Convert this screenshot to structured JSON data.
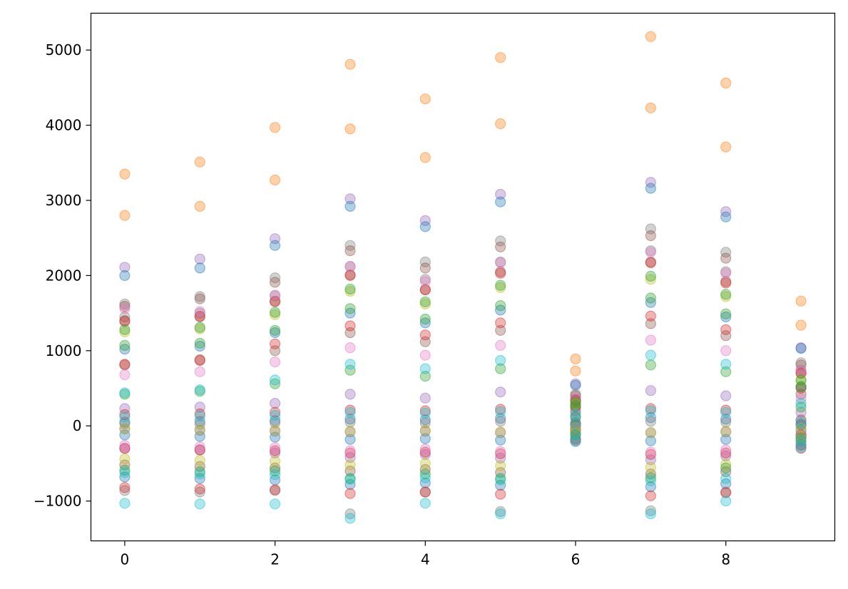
{
  "chart_data": {
    "type": "scatter",
    "title": "",
    "xlabel": "",
    "ylabel": "",
    "xlim": [
      -0.45,
      9.45
    ],
    "ylim": [
      -1530,
      5490
    ],
    "x_ticks": [
      0,
      2,
      4,
      6,
      8
    ],
    "x_tick_labels": [
      "0",
      "2",
      "4",
      "6",
      "8"
    ],
    "y_ticks": [
      -1000,
      0,
      1000,
      2000,
      3000,
      4000,
      5000
    ],
    "y_tick_labels": [
      "−1000",
      "0",
      "1000",
      "2000",
      "3000",
      "4000",
      "5000"
    ],
    "grid": false,
    "legend": "none",
    "marker_alpha": 0.35,
    "palette": [
      "#1f77b4",
      "#ff7f0e",
      "#2ca02c",
      "#d62728",
      "#9467bd",
      "#8c564b",
      "#e377c2",
      "#7f7f7f",
      "#bcbd22",
      "#17becf"
    ],
    "categories": [
      0,
      1,
      2,
      3,
      4,
      5,
      6,
      7,
      8,
      9
    ],
    "series": [
      {
        "color": "#ff7f0e",
        "points_by_x": [
          [
            3350,
            2800
          ],
          [
            3510,
            2920
          ],
          [
            3970,
            3270
          ],
          [
            4810,
            3950
          ],
          [
            4350,
            3570
          ],
          [
            4900,
            4020
          ],
          [
            890,
            730
          ],
          [
            5180,
            4230
          ],
          [
            4560,
            3710
          ],
          [
            1660,
            1340
          ]
        ]
      },
      {
        "color": "#9467bd",
        "points_by_x": [
          [
            2110,
            230,
            -40,
            -300
          ],
          [
            2220,
            250,
            -60,
            -320
          ],
          [
            2490,
            300,
            -70,
            -360
          ],
          [
            3020,
            420,
            -80,
            -420
          ],
          [
            2730,
            370,
            -70,
            -380
          ],
          [
            3080,
            450,
            -90,
            -430
          ],
          [
            560,
            110,
            20,
            -60
          ],
          [
            3240,
            470,
            -90,
            -450
          ],
          [
            2850,
            400,
            -80,
            -400
          ],
          [
            1040,
            180,
            10,
            -120
          ]
        ]
      },
      {
        "color": "#1f77b4",
        "points_by_x": [
          [
            2000,
            1020,
            50,
            -120,
            -680
          ],
          [
            2100,
            1060,
            60,
            -140,
            -700
          ],
          [
            2400,
            1240,
            70,
            -150,
            -720
          ],
          [
            2920,
            1500,
            90,
            -180,
            -780
          ],
          [
            2650,
            1370,
            80,
            -170,
            -760
          ],
          [
            2980,
            1540,
            100,
            -190,
            -790
          ],
          [
            540,
            280,
            10,
            -40,
            -180
          ],
          [
            3160,
            1640,
            110,
            -200,
            -810
          ],
          [
            2780,
            1450,
            90,
            -180,
            -770
          ],
          [
            1030,
            520,
            30,
            -60,
            -250
          ]
        ]
      },
      {
        "color": "#7f7f7f",
        "points_by_x": [
          [
            1620,
            1450,
            30,
            -860
          ],
          [
            1720,
            1500,
            20,
            -880
          ],
          [
            1970,
            1730,
            40,
            -860
          ],
          [
            2400,
            2120,
            50,
            -1170
          ],
          [
            2180,
            1950,
            40,
            -880
          ],
          [
            2460,
            2180,
            60,
            -1140
          ],
          [
            420,
            350,
            0,
            -170
          ],
          [
            2620,
            2330,
            60,
            -1130
          ],
          [
            2310,
            2050,
            50,
            -880
          ],
          [
            840,
            740,
            10,
            -260
          ]
        ]
      },
      {
        "color": "#8c564b",
        "points_by_x": [
          [
            1590,
            1400,
            810,
            -520
          ],
          [
            1690,
            1450,
            880,
            -540
          ],
          [
            1910,
            1650,
            1000,
            -560
          ],
          [
            2330,
            2010,
            1240,
            -600
          ],
          [
            2100,
            1810,
            1120,
            -580
          ],
          [
            2380,
            2050,
            1270,
            -620
          ],
          [
            400,
            340,
            200,
            -100
          ],
          [
            2530,
            2180,
            1360,
            -640
          ],
          [
            2230,
            1920,
            1200,
            -610
          ],
          [
            810,
            700,
            420,
            -200
          ]
        ]
      },
      {
        "color": "#d62728",
        "points_by_x": [
          [
            1390,
            820,
            150,
            -300,
            -820
          ],
          [
            1460,
            870,
            160,
            -320,
            -840
          ],
          [
            1660,
            1090,
            180,
            -330,
            -850
          ],
          [
            2000,
            1330,
            210,
            -360,
            -900
          ],
          [
            1810,
            1210,
            200,
            -350,
            -880
          ],
          [
            2030,
            1370,
            220,
            -370,
            -910
          ],
          [
            340,
            250,
            40,
            -60,
            -200
          ],
          [
            2170,
            1460,
            230,
            -380,
            -930
          ],
          [
            1900,
            1280,
            210,
            -360,
            -890
          ],
          [
            700,
            500,
            80,
            -120,
            -300
          ]
        ]
      },
      {
        "color": "#e377c2",
        "points_by_x": [
          [
            1560,
            680,
            -260
          ],
          [
            1520,
            720,
            -280
          ],
          [
            1740,
            850,
            -290
          ],
          [
            2120,
            1040,
            -330
          ],
          [
            1920,
            940,
            -310
          ],
          [
            2170,
            1070,
            -340
          ],
          [
            370,
            180,
            -50
          ],
          [
            2310,
            1140,
            -350
          ],
          [
            2030,
            1000,
            -320
          ],
          [
            740,
            360,
            -130
          ]
        ]
      },
      {
        "color": "#bcbd22",
        "points_by_x": [
          [
            1250,
            -40,
            -440
          ],
          [
            1290,
            -50,
            -460
          ],
          [
            1480,
            -60,
            -470
          ],
          [
            1790,
            -70,
            -520
          ],
          [
            1620,
            -60,
            -500
          ],
          [
            1840,
            -80,
            -530
          ],
          [
            300,
            -20,
            -90
          ],
          [
            1950,
            -90,
            -550
          ],
          [
            1720,
            -70,
            -510
          ],
          [
            600,
            -30,
            -160
          ]
        ]
      },
      {
        "color": "#2ca02c",
        "points_by_x": [
          [
            1280,
            1070,
            420,
            -590
          ],
          [
            1310,
            1100,
            460,
            -610
          ],
          [
            1510,
            1270,
            560,
            -600
          ],
          [
            1820,
            1560,
            740,
            -700
          ],
          [
            1650,
            1420,
            660,
            -640
          ],
          [
            1870,
            1600,
            760,
            -700
          ],
          [
            310,
            260,
            120,
            -120
          ],
          [
            1990,
            1700,
            810,
            -690
          ],
          [
            1750,
            1490,
            720,
            -560
          ],
          [
            610,
            520,
            250,
            -160
          ]
        ]
      },
      {
        "color": "#17becf",
        "points_by_x": [
          [
            440,
            120,
            -620,
            -1030
          ],
          [
            480,
            130,
            -640,
            -1040
          ],
          [
            610,
            140,
            -650,
            -1040
          ],
          [
            820,
            180,
            -710,
            -1230
          ],
          [
            760,
            170,
            -690,
            -1030
          ],
          [
            870,
            190,
            -720,
            -1170
          ],
          [
            150,
            30,
            -120,
            -210
          ],
          [
            940,
            200,
            -730,
            -1170
          ],
          [
            820,
            180,
            -700,
            -1000
          ],
          [
            300,
            60,
            -200,
            -290
          ]
        ]
      }
    ]
  }
}
